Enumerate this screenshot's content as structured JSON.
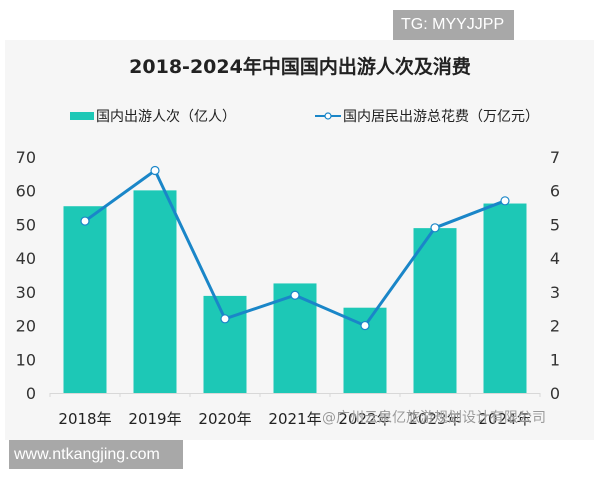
{
  "badges": {
    "top_right": "TG: MYYJJPP",
    "bottom_left": "www.ntkangjing.com"
  },
  "watermark": "@广州云泉亿旅游规划设计有限公司",
  "colors": {
    "bar": "#1dc8b6",
    "line": "#1a86c8",
    "panel_bg": "#f6f6f6"
  },
  "chart_data": {
    "type": "bar+line",
    "title": "2018-2024年中国国内出游人次及消费",
    "categories": [
      "2018年",
      "2019年",
      "2020年",
      "2021年",
      "2022年",
      "2023年",
      "2024年"
    ],
    "series": [
      {
        "name": "国内出游人次（亿人）",
        "type": "bar",
        "axis": "left",
        "values": [
          55.4,
          60.1,
          28.8,
          32.5,
          25.3,
          48.9,
          56.2
        ]
      },
      {
        "name": "国内居民出游总花费（万亿元）",
        "type": "line",
        "axis": "right",
        "values": [
          5.1,
          6.6,
          2.2,
          2.9,
          2.0,
          4.9,
          5.7
        ]
      }
    ],
    "left_axis": {
      "ticks": [
        "0",
        "10",
        "20",
        "30",
        "40",
        "50",
        "60",
        "70"
      ],
      "ylim": [
        0,
        70
      ]
    },
    "right_axis": {
      "ticks": [
        "0",
        "1",
        "2",
        "3",
        "4",
        "5",
        "6",
        "7"
      ],
      "ylim": [
        0,
        7
      ]
    },
    "xlabel": "",
    "ylabel": "",
    "grid": false,
    "legend_position": "top"
  }
}
